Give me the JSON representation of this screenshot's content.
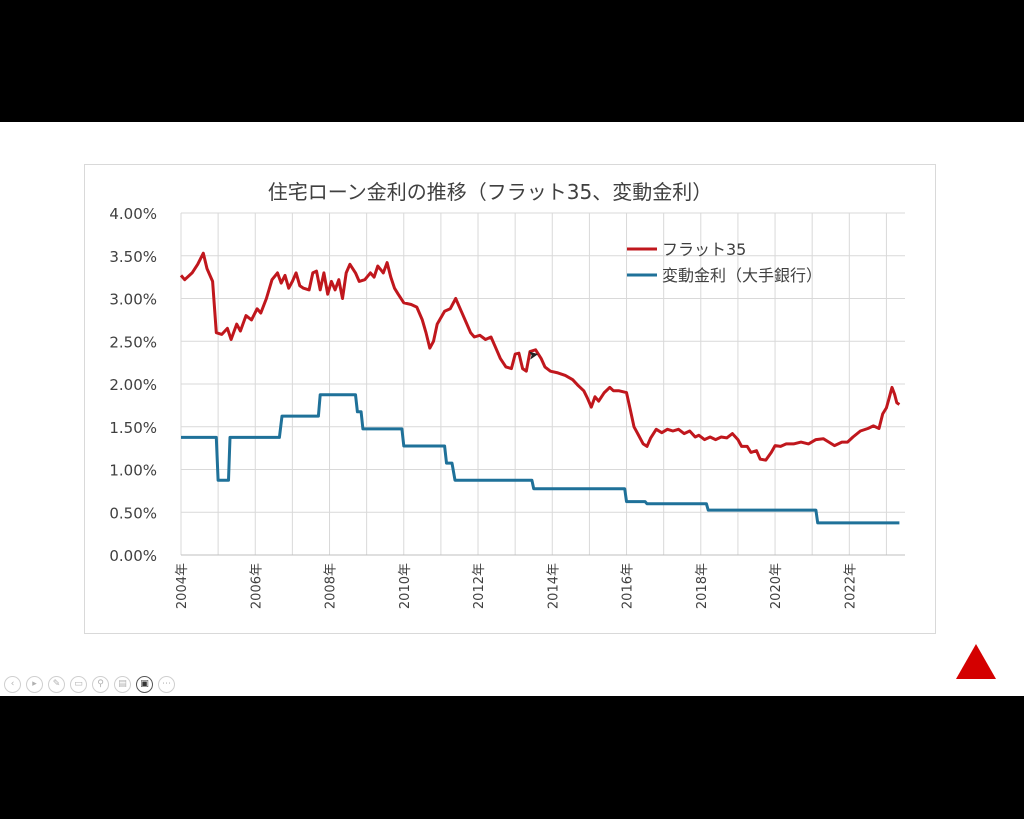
{
  "chart_data": {
    "type": "line",
    "title": "住宅ローン金利の推移（フラット35、変動金利）",
    "xlabel": "",
    "ylabel": "",
    "xlim": [
      2004,
      2023.5
    ],
    "ylim": [
      0,
      4
    ],
    "y_ticks": [
      "0.00%",
      "0.50%",
      "1.00%",
      "1.50%",
      "2.00%",
      "2.50%",
      "3.00%",
      "3.50%",
      "4.00%"
    ],
    "x_ticks": [
      {
        "value": 2004,
        "label": "2004年"
      },
      {
        "value": 2006,
        "label": "2006年"
      },
      {
        "value": 2008,
        "label": "2008年"
      },
      {
        "value": 2010,
        "label": "2010年"
      },
      {
        "value": 2012,
        "label": "2012年"
      },
      {
        "value": 2014,
        "label": "2014年"
      },
      {
        "value": 2016,
        "label": "2016年"
      },
      {
        "value": 2018,
        "label": "2018年"
      },
      {
        "value": 2020,
        "label": "2020年"
      },
      {
        "value": 2022,
        "label": "2022年"
      }
    ],
    "grid": true,
    "legend_position": "top-right",
    "series": [
      {
        "name": "フラット35",
        "color": "#c0171d",
        "points": [
          [
            2004.0,
            3.27
          ],
          [
            2004.1,
            3.22
          ],
          [
            2004.3,
            3.3
          ],
          [
            2004.45,
            3.4
          ],
          [
            2004.6,
            3.53
          ],
          [
            2004.7,
            3.35
          ],
          [
            2004.85,
            3.2
          ],
          [
            2004.95,
            2.6
          ],
          [
            2005.1,
            2.58
          ],
          [
            2005.25,
            2.65
          ],
          [
            2005.35,
            2.52
          ],
          [
            2005.5,
            2.7
          ],
          [
            2005.6,
            2.62
          ],
          [
            2005.75,
            2.8
          ],
          [
            2005.9,
            2.75
          ],
          [
            2006.05,
            2.88
          ],
          [
            2006.15,
            2.83
          ],
          [
            2006.3,
            3.0
          ],
          [
            2006.45,
            3.22
          ],
          [
            2006.6,
            3.3
          ],
          [
            2006.7,
            3.18
          ],
          [
            2006.8,
            3.27
          ],
          [
            2006.9,
            3.12
          ],
          [
            2007.0,
            3.2
          ],
          [
            2007.1,
            3.3
          ],
          [
            2007.2,
            3.15
          ],
          [
            2007.3,
            3.12
          ],
          [
            2007.45,
            3.1
          ],
          [
            2007.55,
            3.3
          ],
          [
            2007.65,
            3.32
          ],
          [
            2007.75,
            3.1
          ],
          [
            2007.85,
            3.3
          ],
          [
            2007.95,
            3.05
          ],
          [
            2008.05,
            3.2
          ],
          [
            2008.15,
            3.1
          ],
          [
            2008.25,
            3.22
          ],
          [
            2008.35,
            3.0
          ],
          [
            2008.45,
            3.3
          ],
          [
            2008.55,
            3.4
          ],
          [
            2008.7,
            3.3
          ],
          [
            2008.8,
            3.2
          ],
          [
            2008.95,
            3.22
          ],
          [
            2009.1,
            3.3
          ],
          [
            2009.2,
            3.25
          ],
          [
            2009.3,
            3.38
          ],
          [
            2009.45,
            3.3
          ],
          [
            2009.55,
            3.42
          ],
          [
            2009.65,
            3.25
          ],
          [
            2009.75,
            3.12
          ],
          [
            2009.85,
            3.05
          ],
          [
            2010.0,
            2.95
          ],
          [
            2010.2,
            2.93
          ],
          [
            2010.35,
            2.9
          ],
          [
            2010.5,
            2.75
          ],
          [
            2010.6,
            2.6
          ],
          [
            2010.7,
            2.42
          ],
          [
            2010.8,
            2.5
          ],
          [
            2010.9,
            2.7
          ],
          [
            2011.1,
            2.85
          ],
          [
            2011.25,
            2.88
          ],
          [
            2011.4,
            3.0
          ],
          [
            2011.55,
            2.85
          ],
          [
            2011.7,
            2.7
          ],
          [
            2011.8,
            2.6
          ],
          [
            2011.9,
            2.55
          ],
          [
            2012.05,
            2.57
          ],
          [
            2012.2,
            2.52
          ],
          [
            2012.35,
            2.55
          ],
          [
            2012.5,
            2.4
          ],
          [
            2012.6,
            2.3
          ],
          [
            2012.75,
            2.2
          ],
          [
            2012.9,
            2.18
          ],
          [
            2013.0,
            2.35
          ],
          [
            2013.1,
            2.36
          ],
          [
            2013.2,
            2.18
          ],
          [
            2013.3,
            2.15
          ],
          [
            2013.4,
            2.38
          ],
          [
            2013.55,
            2.4
          ],
          [
            2013.7,
            2.3
          ],
          [
            2013.8,
            2.2
          ],
          [
            2013.95,
            2.15
          ],
          [
            2014.15,
            2.13
          ],
          [
            2014.35,
            2.1
          ],
          [
            2014.55,
            2.05
          ],
          [
            2014.7,
            1.98
          ],
          [
            2014.85,
            1.92
          ],
          [
            2014.95,
            1.83
          ],
          [
            2015.05,
            1.73
          ],
          [
            2015.15,
            1.85
          ],
          [
            2015.25,
            1.8
          ],
          [
            2015.4,
            1.9
          ],
          [
            2015.55,
            1.96
          ],
          [
            2015.65,
            1.92
          ],
          [
            2015.8,
            1.92
          ],
          [
            2016.0,
            1.9
          ],
          [
            2016.1,
            1.7
          ],
          [
            2016.2,
            1.5
          ],
          [
            2016.3,
            1.42
          ],
          [
            2016.45,
            1.3
          ],
          [
            2016.55,
            1.27
          ],
          [
            2016.65,
            1.37
          ],
          [
            2016.8,
            1.47
          ],
          [
            2016.95,
            1.43
          ],
          [
            2017.1,
            1.47
          ],
          [
            2017.25,
            1.45
          ],
          [
            2017.4,
            1.47
          ],
          [
            2017.55,
            1.42
          ],
          [
            2017.7,
            1.45
          ],
          [
            2017.85,
            1.38
          ],
          [
            2017.95,
            1.4
          ],
          [
            2018.1,
            1.35
          ],
          [
            2018.25,
            1.38
          ],
          [
            2018.4,
            1.35
          ],
          [
            2018.55,
            1.38
          ],
          [
            2018.7,
            1.37
          ],
          [
            2018.85,
            1.42
          ],
          [
            2019.0,
            1.35
          ],
          [
            2019.1,
            1.27
          ],
          [
            2019.25,
            1.27
          ],
          [
            2019.35,
            1.2
          ],
          [
            2019.5,
            1.22
          ],
          [
            2019.6,
            1.12
          ],
          [
            2019.75,
            1.11
          ],
          [
            2019.9,
            1.2
          ],
          [
            2020.0,
            1.28
          ],
          [
            2020.15,
            1.27
          ],
          [
            2020.3,
            1.3
          ],
          [
            2020.5,
            1.3
          ],
          [
            2020.7,
            1.32
          ],
          [
            2020.9,
            1.3
          ],
          [
            2021.1,
            1.35
          ],
          [
            2021.3,
            1.36
          ],
          [
            2021.45,
            1.32
          ],
          [
            2021.6,
            1.28
          ],
          [
            2021.8,
            1.32
          ],
          [
            2021.95,
            1.32
          ],
          [
            2022.1,
            1.38
          ],
          [
            2022.3,
            1.45
          ],
          [
            2022.5,
            1.48
          ],
          [
            2022.65,
            1.51
          ],
          [
            2022.8,
            1.48
          ],
          [
            2022.9,
            1.65
          ],
          [
            2023.0,
            1.72
          ],
          [
            2023.05,
            1.8
          ],
          [
            2023.15,
            1.96
          ],
          [
            2023.22,
            1.88
          ],
          [
            2023.28,
            1.78
          ],
          [
            2023.35,
            1.76
          ]
        ]
      },
      {
        "name": "変動金利（大手銀行）",
        "color": "#1f7199",
        "points": [
          [
            2004.0,
            1.375
          ],
          [
            2004.95,
            1.375
          ],
          [
            2005.0,
            0.875
          ],
          [
            2005.28,
            0.875
          ],
          [
            2005.32,
            1.375
          ],
          [
            2006.65,
            1.375
          ],
          [
            2006.72,
            1.625
          ],
          [
            2007.7,
            1.625
          ],
          [
            2007.75,
            1.875
          ],
          [
            2008.7,
            1.875
          ],
          [
            2008.75,
            1.675
          ],
          [
            2008.85,
            1.675
          ],
          [
            2008.9,
            1.475
          ],
          [
            2009.95,
            1.475
          ],
          [
            2010.0,
            1.275
          ],
          [
            2011.1,
            1.275
          ],
          [
            2011.15,
            1.075
          ],
          [
            2011.3,
            1.075
          ],
          [
            2011.38,
            0.875
          ],
          [
            2013.45,
            0.875
          ],
          [
            2013.5,
            0.775
          ],
          [
            2015.95,
            0.775
          ],
          [
            2016.0,
            0.625
          ],
          [
            2016.5,
            0.625
          ],
          [
            2016.55,
            0.6
          ],
          [
            2018.15,
            0.6
          ],
          [
            2018.2,
            0.525
          ],
          [
            2021.1,
            0.525
          ],
          [
            2021.15,
            0.375
          ],
          [
            2023.35,
            0.375
          ]
        ]
      }
    ]
  },
  "toolbar": {
    "icons": [
      "chevron-left-icon",
      "play-icon",
      "pen-icon",
      "copy-icon",
      "zoom-icon",
      "subtitles-icon",
      "video-icon",
      "more-icon"
    ],
    "glyphs": [
      "‹",
      "▸",
      "✎",
      "▭",
      "⚲",
      "▤",
      "▣",
      "⋯"
    ]
  },
  "nav_triangle_color": "#d40000"
}
